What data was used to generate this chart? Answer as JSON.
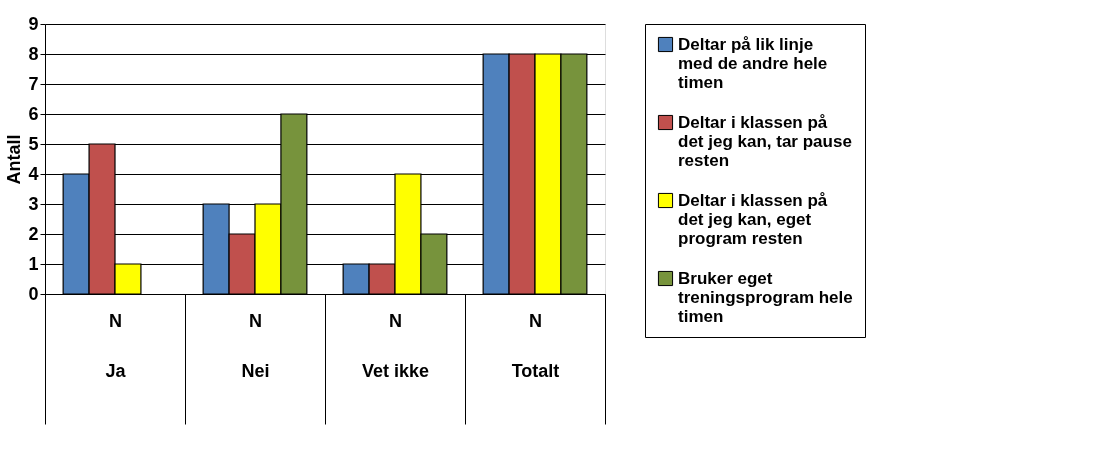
{
  "chart_data": {
    "type": "bar",
    "ylabel": "Antall",
    "categories": [
      "N\nJa",
      "N\nNei",
      "N\nVet ikke",
      "N\nTotalt"
    ],
    "series": [
      {
        "name": "Deltar på lik linje med de andre hele timen",
        "color": "#4f81bd",
        "values": [
          4,
          3,
          1,
          8
        ]
      },
      {
        "name": "Deltar i klassen på det jeg kan, tar pause resten",
        "color": "#c0504d",
        "values": [
          5,
          2,
          1,
          8
        ]
      },
      {
        "name": "Deltar i klassen på det jeg kan, eget program resten",
        "color": "#ffff00",
        "values": [
          1,
          3,
          4,
          8
        ]
      },
      {
        "name": "Bruker eget treningsprogram hele timen",
        "color": "#77933c",
        "values": [
          null,
          6,
          2,
          8
        ]
      }
    ],
    "ylim": [
      0,
      9
    ],
    "yticks": [
      0,
      1,
      2,
      3,
      4,
      5,
      6,
      7,
      8,
      9
    ],
    "grid": "y",
    "legend": "right"
  }
}
